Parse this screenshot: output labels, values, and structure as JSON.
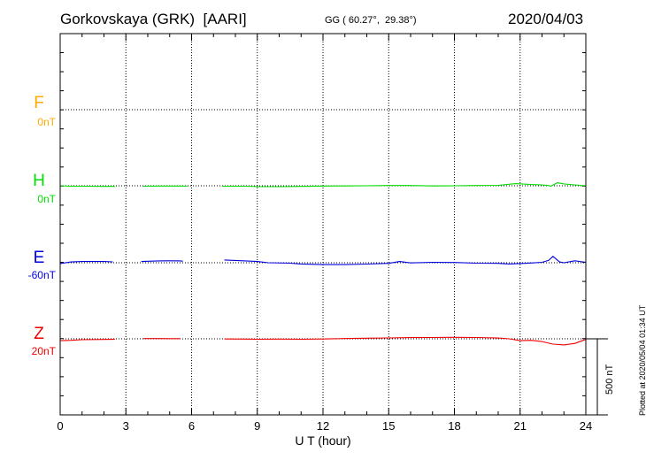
{
  "header": {
    "station": "Gorkovskaya (GRK)  [AARI]",
    "coords": "GG ( 60.27°,  29.38°)",
    "date": "2020/04/03"
  },
  "footer": {
    "plotted": "Plotted at 2020/05/04 01:34 UT",
    "scale": "500 nT"
  },
  "colors": {
    "F": "#ffaa00",
    "H": "#00dd00",
    "E": "#0000dd",
    "Z": "#ee0000"
  },
  "chart_data": {
    "type": "line",
    "xlabel": "U T (hour)",
    "xlim": [
      0,
      24
    ],
    "xticks": [
      "0",
      "3",
      "6",
      "9",
      "12",
      "15",
      "18",
      "21",
      "24"
    ],
    "ylabel": "",
    "scale_bar_nT": 500,
    "series": [
      {
        "name": "F",
        "baseline": "0nT",
        "points": []
      },
      {
        "name": "H",
        "baseline": "0nT",
        "points": [
          [
            0.0,
            0
          ],
          [
            0.5,
            -3
          ],
          [
            1.0,
            -3
          ],
          [
            2.0,
            -4
          ],
          [
            2.5,
            -4
          ],
          [
            3.0,
            null
          ],
          [
            3.8,
            -3
          ],
          [
            4.5,
            -2
          ],
          [
            5.5,
            -2
          ],
          [
            5.8,
            -3
          ],
          [
            6.0,
            null
          ],
          [
            7.4,
            -3
          ],
          [
            8.5,
            -3
          ],
          [
            9.0,
            -6
          ],
          [
            10.0,
            -6
          ],
          [
            11.0,
            -4
          ],
          [
            12.0,
            -2
          ],
          [
            13.0,
            -1
          ],
          [
            14.0,
            0
          ],
          [
            15.0,
            2
          ],
          [
            16.0,
            2
          ],
          [
            17.0,
            -1
          ],
          [
            18.0,
            0
          ],
          [
            19.0,
            2
          ],
          [
            20.0,
            3
          ],
          [
            20.8,
            14
          ],
          [
            21.5,
            8
          ],
          [
            22.0,
            6
          ],
          [
            22.3,
            2
          ],
          [
            22.4,
            -3
          ],
          [
            22.7,
            20
          ],
          [
            23.0,
            12
          ],
          [
            23.5,
            6
          ],
          [
            24.0,
            0
          ]
        ]
      },
      {
        "name": "E",
        "baseline": "-60nT",
        "points": [
          [
            0.0,
            -5
          ],
          [
            0.5,
            5
          ],
          [
            1.0,
            8
          ],
          [
            2.0,
            8
          ],
          [
            2.4,
            6
          ],
          [
            2.5,
            null
          ],
          [
            3.7,
            8
          ],
          [
            4.5,
            12
          ],
          [
            5.0,
            13
          ],
          [
            5.5,
            12
          ],
          [
            5.6,
            10
          ],
          [
            5.7,
            null
          ],
          [
            7.5,
            18
          ],
          [
            8.0,
            15
          ],
          [
            9.0,
            8
          ],
          [
            9.5,
            0
          ],
          [
            10.5,
            -3
          ],
          [
            11.0,
            -8
          ],
          [
            12.0,
            -12
          ],
          [
            13.0,
            -12
          ],
          [
            14.0,
            -9
          ],
          [
            15.0,
            -4
          ],
          [
            15.5,
            8
          ],
          [
            16.0,
            -1
          ],
          [
            17.0,
            3
          ],
          [
            18.0,
            2
          ],
          [
            19.0,
            -3
          ],
          [
            20.0,
            -4
          ],
          [
            20.5,
            -8
          ],
          [
            21.0,
            -5
          ],
          [
            21.5,
            -2
          ],
          [
            22.0,
            3
          ],
          [
            22.3,
            15
          ],
          [
            22.5,
            42
          ],
          [
            22.8,
            5
          ],
          [
            23.0,
            0
          ],
          [
            23.5,
            13
          ],
          [
            24.0,
            3
          ]
        ]
      },
      {
        "name": "Z",
        "baseline": "20nT",
        "points": [
          [
            0.0,
            -12
          ],
          [
            0.5,
            -10
          ],
          [
            1.0,
            -6
          ],
          [
            2.0,
            -4
          ],
          [
            2.5,
            -3
          ],
          [
            2.6,
            null
          ],
          [
            3.8,
            2
          ],
          [
            4.5,
            2
          ],
          [
            5.0,
            1
          ],
          [
            5.5,
            1
          ],
          [
            5.6,
            null
          ],
          [
            7.5,
            -1
          ],
          [
            8.5,
            -2
          ],
          [
            9.0,
            -3
          ],
          [
            10.0,
            -2
          ],
          [
            11.0,
            -3
          ],
          [
            12.0,
            -1
          ],
          [
            13.0,
            2
          ],
          [
            14.0,
            4
          ],
          [
            15.0,
            6
          ],
          [
            16.0,
            8
          ],
          [
            17.0,
            9
          ],
          [
            18.0,
            10
          ],
          [
            19.0,
            9
          ],
          [
            20.0,
            5
          ],
          [
            20.5,
            0
          ],
          [
            21.0,
            -12
          ],
          [
            21.5,
            -10
          ],
          [
            22.0,
            -18
          ],
          [
            22.5,
            -35
          ],
          [
            23.0,
            -40
          ],
          [
            23.5,
            -30
          ],
          [
            24.0,
            -4
          ]
        ]
      }
    ]
  }
}
